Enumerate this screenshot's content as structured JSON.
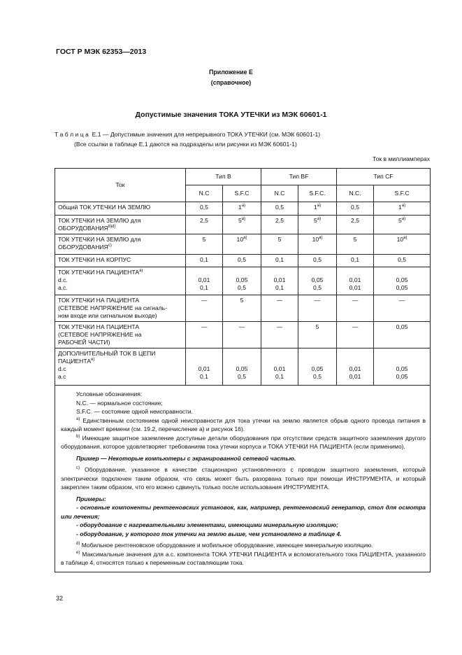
{
  "header": {
    "doc_id": "ГОСТ Р МЭК 62353—2013",
    "annex": "Приложение Е",
    "annex_type": "(справочное)"
  },
  "title": "Допустимые значения ТОКА УТЕЧКИ из МЭК 60601-1",
  "caption": {
    "line1": "Т а б л и ц а  Е.1 — Допустимые значения для непрерывного ТОКА УТЕЧКИ (см. МЭК 60601-1)",
    "line2": "(Все ссылки в таблице Е.1 даются на подразделы или рисунки из МЭК 60601-1)"
  },
  "unit": "Ток в миллиамперах",
  "table": {
    "col_header": "Ток",
    "groups": [
      "Тип B",
      "Тип BF",
      "Тип CF"
    ],
    "subheaders": [
      "N.C",
      "S.F.C",
      "N.C",
      "S.F.C.",
      "N.C.",
      "S.F.C"
    ],
    "rows": [
      {
        "label": [
          [
            "Общий ТОК УТЕЧКИ НА ЗЕМЛЮ",
            ""
          ]
        ],
        "values": [
          [
            "0,5",
            ""
          ],
          [
            "1",
            "a)"
          ],
          [
            "0,5",
            ""
          ],
          [
            "1",
            "a)"
          ],
          [
            "0,5",
            ""
          ],
          [
            "1",
            "a)"
          ]
        ]
      },
      {
        "label": [
          [
            "ТОК УТЕЧКИ НА ЗЕМЛЮ для",
            ""
          ],
          [
            "ОБОРУДОВАНИЯ",
            "b)d)"
          ]
        ],
        "values": [
          [
            "2,5",
            ""
          ],
          [
            "5",
            "a)"
          ],
          [
            "2,5",
            ""
          ],
          [
            "5",
            "a)"
          ],
          [
            "2,5",
            ""
          ],
          [
            "5",
            "a)"
          ]
        ]
      },
      {
        "label": [
          [
            "ТОК УТЕЧКИ НА ЗЕМЛЮ для",
            ""
          ],
          [
            " ОБОРУДОВАНИЯ",
            "c)"
          ]
        ],
        "values": [
          [
            "5",
            ""
          ],
          [
            "10",
            "a)"
          ],
          [
            "5",
            ""
          ],
          [
            "10",
            "a)"
          ],
          [
            "5",
            ""
          ],
          [
            "10",
            "a)"
          ]
        ]
      },
      {
        "label": [
          [
            "ТОК УТЕЧКИ НА КОРПУС",
            ""
          ]
        ],
        "values": [
          [
            "0,1",
            ""
          ],
          [
            "0,5",
            ""
          ],
          [
            "0,1",
            ""
          ],
          [
            "0,5",
            ""
          ],
          [
            "0,1",
            ""
          ],
          [
            "0,5",
            ""
          ]
        ]
      },
      {
        "label": [
          [
            "ТОК УТЕЧКИ НА ПАЦИЕНТА",
            "a)"
          ],
          [
            "d.c.",
            ""
          ],
          [
            "a.c.",
            ""
          ]
        ],
        "offset": 1,
        "values": [
          [
            "0,01\n0,1",
            ""
          ],
          [
            "0,05\n0,5",
            ""
          ],
          [
            "0,01\n0,1",
            ""
          ],
          [
            "0,05\n0,5",
            ""
          ],
          [
            "0,01\n0,01",
            ""
          ],
          [
            "0,05\n0,05",
            ""
          ]
        ]
      },
      {
        "label": [
          [
            "ТОК УТЕЧКИ НА ПАЦИЕНТА",
            ""
          ],
          [
            "(СЕТЕВОЕ НАПРЯЖЕНИЕ на сигналь-",
            ""
          ],
          [
            "ном входе или сигнальном выходе)",
            ""
          ]
        ],
        "values": [
          [
            "—",
            ""
          ],
          [
            "5",
            ""
          ],
          [
            "—",
            ""
          ],
          [
            "—",
            ""
          ],
          [
            "—",
            ""
          ],
          [
            "—",
            ""
          ]
        ]
      },
      {
        "label": [
          [
            "ТОК УТЕЧКИ НА ПАЦИЕНТА",
            ""
          ],
          [
            " (СЕТЕВОЕ НАПРЯЖЕНИЕ на",
            ""
          ],
          [
            " РАБОЧЕЙ ЧАСТИ)",
            ""
          ]
        ],
        "values": [
          [
            "—",
            ""
          ],
          [
            "—",
            ""
          ],
          [
            "—",
            ""
          ],
          [
            "5",
            ""
          ],
          [
            "—",
            ""
          ],
          [
            "0,05",
            ""
          ]
        ]
      },
      {
        "label": [
          [
            "ДОПОЛНИТЕЛЬНЫЙ ТОК В ЦЕПИ",
            ""
          ],
          [
            " ПАЦИЕНТА",
            "e)"
          ],
          [
            "d.c",
            ""
          ],
          [
            "a.c",
            ""
          ]
        ],
        "offset": 2,
        "values": [
          [
            "0,01\n0,1",
            ""
          ],
          [
            "0,05\n0,5",
            ""
          ],
          [
            "0,01\n0,1",
            ""
          ],
          [
            "0,05\n0,5",
            ""
          ],
          [
            "0,01\n0,01",
            ""
          ],
          [
            "0,05\n0,05",
            ""
          ]
        ]
      }
    ]
  },
  "notes": [
    {
      "sup": "",
      "text": "Условные обозначения:",
      "style": "ind"
    },
    {
      "sup": "",
      "text": "N.C. — нормальное состояние;",
      "style": "ind"
    },
    {
      "sup": "",
      "text": "S.F.C. — состояние одной неисправности.",
      "style": "ind"
    },
    {
      "sup": "a)",
      "text": " Единственным состоянием одной неисправности для тока утечки на землю является обрыв одного провода питания в каждый момент времени (см. 19.2, перечисление а) и рисунок 16).",
      "style": "ind"
    },
    {
      "sup": "b)",
      "text": " Имеющие защитное заземление доступные детали оборудования при отсутствии средств защитного заземления другого оборудования, которое удовлетворяет требованиям тока утечки корпуса и ТОКА УТЕЧКИ НА ПАЦИЕНТА (если применимо).",
      "style": "ind"
    },
    {
      "sup": "",
      "text": "Пример — Некоторые компьютеры с экранированной сетевой частью.",
      "style": "ind bi gap"
    },
    {
      "sup": "c)",
      "text": " Оборудование, указанное в качестве стационарно установленного с проводом защитного заземления, который электрически подключен таким образом, что связь может быть разорвана только при помощи ИНСТРУМЕНТА, и который закреплен таким образом, что его можно сдвинуть только после использования ИНСТРУМЕНТА.",
      "style": "ind gap"
    },
    {
      "sup": "",
      "text": "Примеры:",
      "style": "ind bi gap"
    },
    {
      "sup": "",
      "text": "- основные компоненты рентгеновских установок, как, например, рентгеновский генератор, стол для осмотра или лечения;",
      "style": "ind bi"
    },
    {
      "sup": "",
      "text": "- оборудование с нагревательными элементами, имеющими минеральную изоляцию;",
      "style": "ind bi"
    },
    {
      "sup": "",
      "text": "- оборудование, у которого ток утечки на землю выше, чем установлено в таблице 4.",
      "style": "ind bi"
    },
    {
      "sup": "d)",
      "text": " Мобильное рентгеновское оборудование и мобильное оборудование, имеющее минеральную изоляцию.",
      "style": "ind gap"
    },
    {
      "sup": "e)",
      "text": " Максимальные значения для а.с. компонента ТОКА УТЕЧКИ ПАЦИЕНТА и вспомогательного тока ПАЦИЕНТА, указанного в таблице 4, относятся только к переменным составляющим тока.",
      "style": "ind"
    }
  ],
  "page_number": "32"
}
